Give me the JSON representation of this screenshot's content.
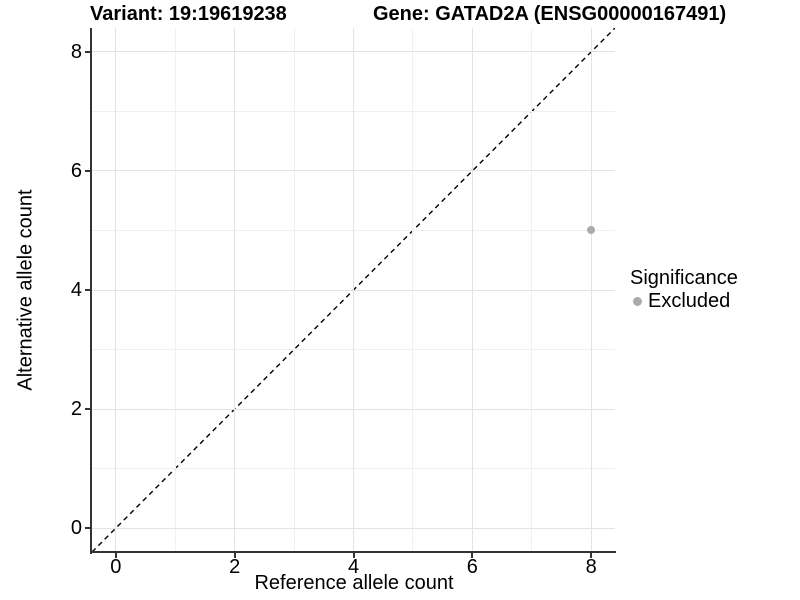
{
  "chart_data": {
    "type": "scatter",
    "titles": {
      "left": "Variant: 19:19619238",
      "right": "Gene: GATAD2A (ENSG00000167491)"
    },
    "xlabel": "Reference allele count",
    "ylabel": "Alternative allele count",
    "xlim": [
      -0.4,
      8.4
    ],
    "ylim": [
      -0.4,
      8.4
    ],
    "x_major_ticks": [
      0,
      2,
      4,
      6,
      8
    ],
    "y_major_ticks": [
      0,
      2,
      4,
      6,
      8
    ],
    "x_minor_ticks": [
      1,
      3,
      5,
      7
    ],
    "y_minor_ticks": [
      1,
      3,
      5,
      7
    ],
    "grid": {
      "major_color": "#e3e3e3",
      "minor_color": "#f0f0f0"
    },
    "reference_line": {
      "kind": "identity y=x",
      "from": [
        -0.4,
        -0.4
      ],
      "to": [
        8.4,
        8.4
      ],
      "style": "dashed",
      "color": "#000000"
    },
    "series": [
      {
        "name": "Excluded",
        "color": "#ababab",
        "points": [
          [
            8,
            5
          ]
        ]
      }
    ],
    "legend": {
      "title": "Significance",
      "position": "right",
      "entries": [
        {
          "label": "Excluded",
          "color": "#ababab"
        }
      ]
    }
  }
}
